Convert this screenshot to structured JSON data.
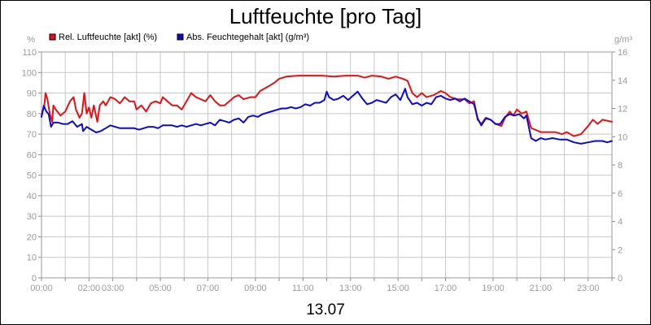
{
  "chart_data": {
    "type": "line",
    "title": "Luftfeuchte [pro Tag]",
    "date_label": "13.07",
    "y_left": {
      "unit": "%",
      "min": 0,
      "max": 110,
      "step": 10
    },
    "y_right": {
      "unit": "g/m³",
      "min": 0,
      "max": 16,
      "step": 2
    },
    "x_range_hours": [
      0,
      24
    ],
    "x_ticks": [
      {
        "h": 0,
        "label": "00:00"
      },
      {
        "h": 2,
        "label": "02:00"
      },
      {
        "h": 3,
        "label": "03:00"
      },
      {
        "h": 5,
        "label": "05:00"
      },
      {
        "h": 7,
        "label": "07:00"
      },
      {
        "h": 9,
        "label": "09:00"
      },
      {
        "h": 11,
        "label": "11:00"
      },
      {
        "h": 13,
        "label": "13:00"
      },
      {
        "h": 15,
        "label": "15:00"
      },
      {
        "h": 17,
        "label": "17:00"
      },
      {
        "h": 19,
        "label": "19:00"
      },
      {
        "h": 21,
        "label": "21:00"
      },
      {
        "h": 23,
        "label": "23:00"
      }
    ],
    "grid": true,
    "legend_position": "top-left",
    "series": [
      {
        "name": "Rel. Luftfeuchte [akt] (%)",
        "color": "#e81010",
        "axis": "left",
        "points": [
          [
            0.0,
            79
          ],
          [
            0.12,
            84
          ],
          [
            0.17,
            90
          ],
          [
            0.25,
            87
          ],
          [
            0.35,
            80
          ],
          [
            0.45,
            76
          ],
          [
            0.5,
            84
          ],
          [
            0.6,
            82
          ],
          [
            0.8,
            79
          ],
          [
            1.0,
            81
          ],
          [
            1.2,
            86
          ],
          [
            1.35,
            88
          ],
          [
            1.45,
            82
          ],
          [
            1.6,
            78
          ],
          [
            1.7,
            80
          ],
          [
            1.8,
            90
          ],
          [
            1.9,
            80
          ],
          [
            2.0,
            83
          ],
          [
            2.1,
            78
          ],
          [
            2.2,
            84
          ],
          [
            2.35,
            76
          ],
          [
            2.45,
            84
          ],
          [
            2.6,
            86
          ],
          [
            2.7,
            84
          ],
          [
            2.9,
            88
          ],
          [
            3.1,
            87
          ],
          [
            3.3,
            85
          ],
          [
            3.5,
            88
          ],
          [
            3.7,
            86
          ],
          [
            3.9,
            86
          ],
          [
            4.0,
            82
          ],
          [
            4.2,
            84
          ],
          [
            4.4,
            81
          ],
          [
            4.6,
            85
          ],
          [
            4.8,
            86
          ],
          [
            5.0,
            85
          ],
          [
            5.1,
            88
          ],
          [
            5.3,
            86
          ],
          [
            5.5,
            84
          ],
          [
            5.7,
            84
          ],
          [
            5.9,
            82
          ],
          [
            6.1,
            86
          ],
          [
            6.3,
            90
          ],
          [
            6.5,
            88
          ],
          [
            6.7,
            87
          ],
          [
            6.9,
            86
          ],
          [
            7.1,
            89
          ],
          [
            7.3,
            86
          ],
          [
            7.5,
            84
          ],
          [
            7.7,
            84
          ],
          [
            7.9,
            86
          ],
          [
            8.1,
            88
          ],
          [
            8.3,
            89
          ],
          [
            8.5,
            87
          ],
          [
            8.8,
            88
          ],
          [
            9.0,
            88
          ],
          [
            9.2,
            91
          ],
          [
            9.5,
            93
          ],
          [
            9.8,
            95
          ],
          [
            10.0,
            97
          ],
          [
            10.3,
            98
          ],
          [
            10.8,
            98.5
          ],
          [
            11.3,
            98.5
          ],
          [
            11.8,
            98.5
          ],
          [
            12.3,
            98
          ],
          [
            12.8,
            98.5
          ],
          [
            13.3,
            98.5
          ],
          [
            13.6,
            97.5
          ],
          [
            13.9,
            98.5
          ],
          [
            14.3,
            98
          ],
          [
            14.6,
            97
          ],
          [
            14.9,
            98
          ],
          [
            15.2,
            97
          ],
          [
            15.4,
            96
          ],
          [
            15.6,
            90
          ],
          [
            15.8,
            88
          ],
          [
            16.0,
            90
          ],
          [
            16.2,
            88
          ],
          [
            16.5,
            89
          ],
          [
            16.8,
            91
          ],
          [
            17.0,
            90
          ],
          [
            17.2,
            88
          ],
          [
            17.5,
            87
          ],
          [
            17.8,
            87
          ],
          [
            18.0,
            85
          ],
          [
            18.2,
            86
          ],
          [
            18.35,
            77
          ],
          [
            18.5,
            75
          ],
          [
            18.7,
            78
          ],
          [
            18.9,
            77
          ],
          [
            19.1,
            75
          ],
          [
            19.35,
            74
          ],
          [
            19.5,
            78
          ],
          [
            19.7,
            81
          ],
          [
            19.85,
            79
          ],
          [
            20.0,
            82
          ],
          [
            20.2,
            80
          ],
          [
            20.4,
            81
          ],
          [
            20.6,
            73
          ],
          [
            20.8,
            72
          ],
          [
            21.0,
            71
          ],
          [
            21.3,
            71
          ],
          [
            21.6,
            71
          ],
          [
            21.9,
            70
          ],
          [
            22.1,
            71
          ],
          [
            22.4,
            69
          ],
          [
            22.7,
            70
          ],
          [
            23.0,
            74
          ],
          [
            23.2,
            77
          ],
          [
            23.4,
            75
          ],
          [
            23.6,
            77
          ],
          [
            24.0,
            76
          ]
        ]
      },
      {
        "name": "Abs. Feuchtegehalt [akt] (g/m³)",
        "color": "#0a0ad8",
        "axis": "right",
        "points": [
          [
            0.0,
            11.4
          ],
          [
            0.1,
            12.2
          ],
          [
            0.2,
            11.8
          ],
          [
            0.3,
            11.6
          ],
          [
            0.4,
            10.7
          ],
          [
            0.5,
            11.0
          ],
          [
            0.7,
            11.0
          ],
          [
            0.9,
            10.9
          ],
          [
            1.1,
            10.9
          ],
          [
            1.3,
            11.1
          ],
          [
            1.5,
            10.7
          ],
          [
            1.7,
            10.9
          ],
          [
            1.75,
            10.4
          ],
          [
            1.9,
            10.7
          ],
          [
            2.1,
            10.5
          ],
          [
            2.3,
            10.3
          ],
          [
            2.5,
            10.4
          ],
          [
            2.7,
            10.6
          ],
          [
            2.9,
            10.8
          ],
          [
            3.1,
            10.7
          ],
          [
            3.3,
            10.6
          ],
          [
            3.5,
            10.6
          ],
          [
            3.7,
            10.6
          ],
          [
            3.9,
            10.6
          ],
          [
            4.1,
            10.5
          ],
          [
            4.3,
            10.6
          ],
          [
            4.5,
            10.7
          ],
          [
            4.7,
            10.7
          ],
          [
            4.9,
            10.6
          ],
          [
            5.1,
            10.8
          ],
          [
            5.3,
            10.8
          ],
          [
            5.5,
            10.8
          ],
          [
            5.7,
            10.7
          ],
          [
            5.9,
            10.8
          ],
          [
            6.1,
            10.7
          ],
          [
            6.3,
            10.8
          ],
          [
            6.5,
            10.9
          ],
          [
            6.7,
            10.8
          ],
          [
            6.9,
            10.9
          ],
          [
            7.1,
            11.0
          ],
          [
            7.3,
            10.8
          ],
          [
            7.5,
            11.2
          ],
          [
            7.7,
            11.1
          ],
          [
            7.9,
            11.0
          ],
          [
            8.1,
            11.2
          ],
          [
            8.3,
            11.3
          ],
          [
            8.5,
            11.0
          ],
          [
            8.7,
            11.4
          ],
          [
            8.9,
            11.5
          ],
          [
            9.1,
            11.4
          ],
          [
            9.3,
            11.6
          ],
          [
            9.5,
            11.7
          ],
          [
            9.7,
            11.8
          ],
          [
            9.9,
            11.9
          ],
          [
            10.1,
            12.0
          ],
          [
            10.3,
            12.0
          ],
          [
            10.5,
            12.1
          ],
          [
            10.7,
            12.0
          ],
          [
            10.9,
            12.1
          ],
          [
            11.1,
            12.3
          ],
          [
            11.3,
            12.2
          ],
          [
            11.5,
            12.4
          ],
          [
            11.7,
            12.4
          ],
          [
            11.9,
            12.6
          ],
          [
            12.0,
            13.2
          ],
          [
            12.1,
            12.8
          ],
          [
            12.3,
            12.6
          ],
          [
            12.5,
            12.7
          ],
          [
            12.7,
            12.9
          ],
          [
            12.9,
            12.6
          ],
          [
            13.1,
            12.9
          ],
          [
            13.3,
            13.2
          ],
          [
            13.5,
            12.7
          ],
          [
            13.7,
            12.3
          ],
          [
            13.9,
            12.4
          ],
          [
            14.1,
            12.6
          ],
          [
            14.3,
            12.5
          ],
          [
            14.5,
            12.4
          ],
          [
            14.7,
            12.8
          ],
          [
            14.9,
            13.0
          ],
          [
            15.1,
            12.6
          ],
          [
            15.3,
            13.4
          ],
          [
            15.4,
            12.8
          ],
          [
            15.6,
            12.3
          ],
          [
            15.8,
            12.4
          ],
          [
            16.0,
            12.2
          ],
          [
            16.2,
            12.4
          ],
          [
            16.4,
            12.3
          ],
          [
            16.6,
            12.8
          ],
          [
            16.8,
            12.9
          ],
          [
            17.0,
            12.7
          ],
          [
            17.2,
            12.6
          ],
          [
            17.4,
            12.7
          ],
          [
            17.6,
            12.5
          ],
          [
            17.8,
            12.7
          ],
          [
            18.0,
            12.5
          ],
          [
            18.2,
            12.3
          ],
          [
            18.35,
            11.3
          ],
          [
            18.5,
            10.8
          ],
          [
            18.7,
            11.3
          ],
          [
            18.9,
            11.2
          ],
          [
            19.1,
            10.9
          ],
          [
            19.3,
            10.9
          ],
          [
            19.5,
            11.4
          ],
          [
            19.7,
            11.6
          ],
          [
            19.9,
            11.5
          ],
          [
            20.1,
            11.6
          ],
          [
            20.3,
            11.3
          ],
          [
            20.4,
            11.5
          ],
          [
            20.6,
            9.9
          ],
          [
            20.8,
            9.7
          ],
          [
            21.0,
            9.9
          ],
          [
            21.2,
            9.8
          ],
          [
            21.5,
            9.9
          ],
          [
            21.8,
            9.8
          ],
          [
            22.1,
            9.8
          ],
          [
            22.4,
            9.6
          ],
          [
            22.7,
            9.5
          ],
          [
            23.0,
            9.6
          ],
          [
            23.3,
            9.7
          ],
          [
            23.6,
            9.7
          ],
          [
            23.8,
            9.6
          ],
          [
            24.0,
            9.7
          ]
        ]
      }
    ]
  }
}
